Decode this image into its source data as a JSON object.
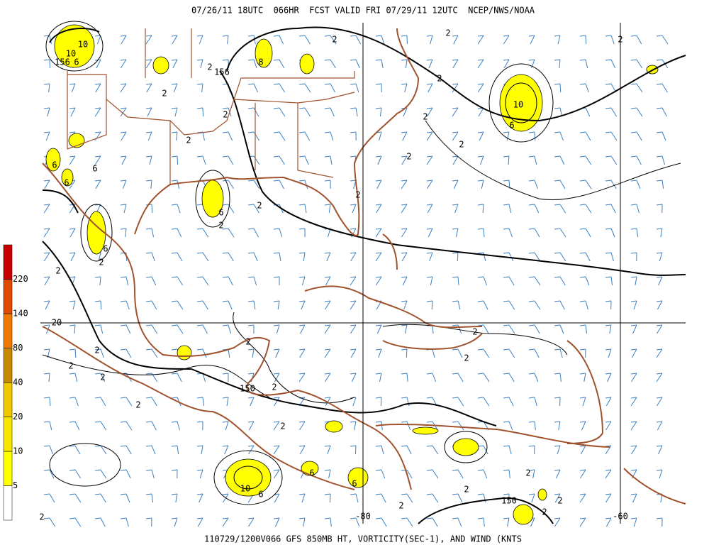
{
  "header": {
    "title": "07/26/11 18UTC  066HR  FCST VALID FRI 07/29/11 12UTC  NCEP/NWS/NOAA"
  },
  "footer": {
    "caption": "110729/1200V066 GFS 850MB HT, VORTICITY(SEC-1), AND WIND (KNTS"
  },
  "colorbar": {
    "labels": [
      "5",
      "10",
      "20",
      "40",
      "80",
      "140",
      "220"
    ],
    "colors": [
      "#ffffff",
      "#ffff00",
      "#f8e600",
      "#f0c800",
      "#c88a00",
      "#f07800",
      "#e04a00",
      "#c80000"
    ]
  },
  "map": {
    "labels": [
      "10",
      "10",
      "156",
      "6",
      "156",
      "2",
      "8",
      "2",
      "2",
      "2",
      "2",
      "10",
      "6",
      "2",
      "2",
      "2",
      "2",
      "2",
      "2",
      "6",
      "6",
      "6",
      "6",
      "2",
      "2",
      "2",
      "6",
      "2",
      "2",
      "20",
      "2",
      "2",
      "2",
      "2",
      "150",
      "2",
      "2",
      "2",
      "2",
      "2",
      "6",
      "6",
      "10",
      "6",
      "2",
      "2",
      "150",
      "2",
      "2",
      "2",
      "2",
      "-80",
      "-60"
    ]
  }
}
